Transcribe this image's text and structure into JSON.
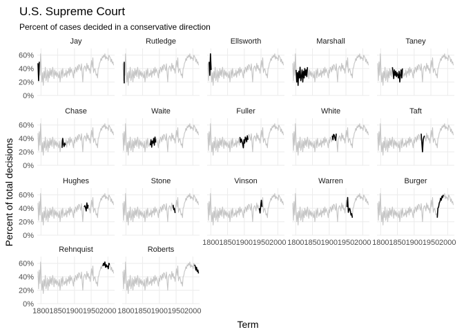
{
  "chart_data": {
    "type": "line",
    "title": "U.S. Supreme Court",
    "subtitle": "Percent of cases decided in a conservative direction",
    "xlabel": "Term",
    "ylabel": "Percent of total decisions",
    "xlim": [
      1789,
      2020
    ],
    "ylim": [
      0,
      70
    ],
    "x_ticks": [
      1800,
      1850,
      1900,
      1950,
      2000
    ],
    "y_ticks": [
      0,
      20,
      40,
      60
    ],
    "y_tick_labels": [
      "0%",
      "20%",
      "40%",
      "60%"
    ],
    "colors": {
      "background_series": "#c4c4c4",
      "highlight_series": "#000000",
      "grid": "#ebebeb"
    },
    "x": [
      1791,
      1793,
      1795,
      1797,
      1799,
      1801,
      1803,
      1805,
      1807,
      1809,
      1811,
      1813,
      1815,
      1817,
      1819,
      1821,
      1823,
      1825,
      1827,
      1829,
      1831,
      1833,
      1835,
      1837,
      1839,
      1841,
      1843,
      1845,
      1847,
      1849,
      1851,
      1853,
      1855,
      1857,
      1859,
      1861,
      1863,
      1865,
      1867,
      1869,
      1871,
      1873,
      1875,
      1877,
      1879,
      1881,
      1883,
      1885,
      1887,
      1889,
      1891,
      1893,
      1895,
      1897,
      1899,
      1901,
      1903,
      1905,
      1907,
      1909,
      1911,
      1913,
      1915,
      1917,
      1919,
      1921,
      1923,
      1925,
      1927,
      1929,
      1931,
      1933,
      1935,
      1937,
      1939,
      1941,
      1943,
      1945,
      1947,
      1949,
      1951,
      1953,
      1955,
      1957,
      1959,
      1961,
      1963,
      1965,
      1967,
      1969,
      1971,
      1973,
      1975,
      1977,
      1979,
      1981,
      1983,
      1985,
      1987,
      1989,
      1991,
      1993,
      1995,
      1997,
      1999,
      2001,
      2003,
      2005,
      2007,
      2009,
      2011,
      2013,
      2015,
      2017
    ],
    "y": [
      48,
      22,
      50,
      30,
      62,
      38,
      20,
      34,
      15,
      36,
      26,
      42,
      22,
      28,
      38,
      20,
      36,
      26,
      40,
      30,
      38,
      28,
      42,
      35,
      25,
      38,
      30,
      36,
      28,
      34,
      30,
      26,
      36,
      20,
      30,
      38,
      26,
      40,
      32,
      28,
      33,
      30,
      38,
      27,
      36,
      33,
      40,
      30,
      42,
      34,
      39,
      36,
      32,
      26,
      38,
      33,
      42,
      40,
      35,
      44,
      38,
      46,
      45,
      40,
      37,
      47,
      33,
      20,
      38,
      42,
      44,
      41,
      36,
      48,
      40,
      45,
      38,
      40,
      33,
      44,
      52,
      42,
      56,
      34,
      38,
      40,
      36,
      30,
      32,
      26,
      40,
      42,
      48,
      50,
      55,
      52,
      58,
      56,
      60,
      57,
      62,
      54,
      58,
      55,
      56,
      52,
      60,
      58,
      56,
      50,
      54,
      48,
      50,
      45
    ],
    "panels": [
      {
        "name": "Jay",
        "start": 1789,
        "end": 1795
      },
      {
        "name": "Rutledge",
        "start": 1795,
        "end": 1795
      },
      {
        "name": "Ellsworth",
        "start": 1796,
        "end": 1800
      },
      {
        "name": "Marshall",
        "start": 1801,
        "end": 1835
      },
      {
        "name": "Taney",
        "start": 1836,
        "end": 1864
      },
      {
        "name": "Chase",
        "start": 1864,
        "end": 1873
      },
      {
        "name": "Waite",
        "start": 1874,
        "end": 1888
      },
      {
        "name": "Fuller",
        "start": 1888,
        "end": 1910
      },
      {
        "name": "White",
        "start": 1910,
        "end": 1921
      },
      {
        "name": "Taft",
        "start": 1921,
        "end": 1930
      },
      {
        "name": "Hughes",
        "start": 1930,
        "end": 1941
      },
      {
        "name": "Stone",
        "start": 1941,
        "end": 1946
      },
      {
        "name": "Vinson",
        "start": 1946,
        "end": 1953
      },
      {
        "name": "Warren",
        "start": 1953,
        "end": 1969
      },
      {
        "name": "Burger",
        "start": 1969,
        "end": 1986
      },
      {
        "name": "Rehnquist",
        "start": 1986,
        "end": 2005
      },
      {
        "name": "Roberts",
        "start": 2005,
        "end": 2019
      }
    ]
  }
}
